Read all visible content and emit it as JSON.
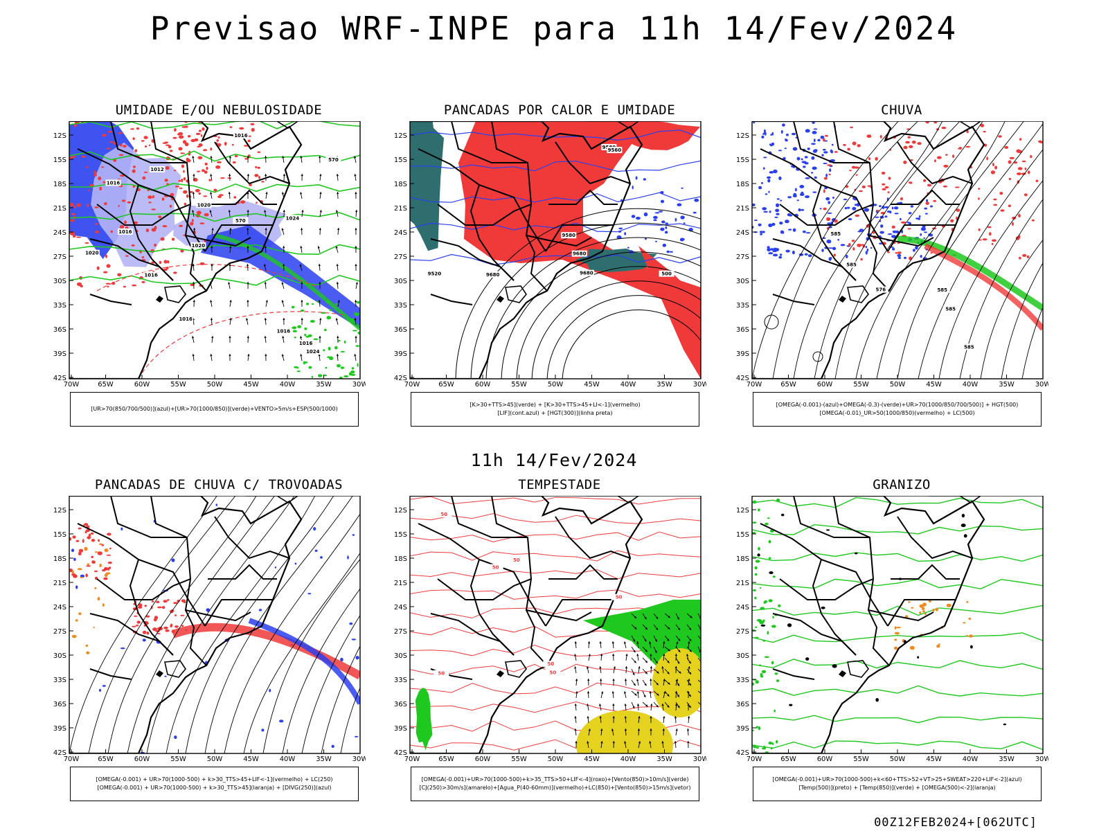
{
  "title": "Previsao WRF-INPE  para 11h 14/Fev/2024",
  "subtitle": "11h 14/Fev/2024",
  "run_stamp": "00Z12FEB2024+[062UTC]",
  "colors": {
    "red": "#f03a3a",
    "green": "#1ec81e",
    "blue": "#2a40f0",
    "teal": "#2f6e6e",
    "yellow": "#e4d21e",
    "orange": "#f08a1e",
    "lightblue": "#b4b4f5",
    "purple": "#7a6ee0"
  },
  "chart_data": [
    {
      "type": "heatmap",
      "title": "UMIDADE E/OU NEBULOSIDADE",
      "lat_ticks": [
        "12S",
        "15S",
        "18S",
        "21S",
        "24S",
        "27S",
        "30S",
        "33S",
        "36S",
        "39S",
        "42S"
      ],
      "lon_ticks": [
        "70W",
        "65W",
        "60W",
        "55W",
        "50W",
        "45W",
        "40W",
        "35W",
        "30W"
      ],
      "legend": [
        "[UR>70(850/700/500)](azul)+[UR>70(1000/850)](verde)+VENTO>5m/s+ESP(500/1000)"
      ],
      "contour_labels": [
        "1016",
        "1016",
        "1016",
        "1024",
        "1016",
        "1016",
        "1012",
        "1020",
        "1020",
        "1016",
        "1024",
        "1020",
        "1016",
        "570",
        "570"
      ],
      "fields": [
        "blue",
        "green",
        "lightblue",
        "red",
        "wind"
      ]
    },
    {
      "type": "heatmap",
      "title": "PANCADAS POR CALOR E UMIDADE",
      "lat_ticks": [
        "12S",
        "15S",
        "18S",
        "21S",
        "24S",
        "27S",
        "30S",
        "33S",
        "36S",
        "39S",
        "42S"
      ],
      "lon_ticks": [
        "70W",
        "65W",
        "60W",
        "55W",
        "50W",
        "45W",
        "40W",
        "35W",
        "30W"
      ],
      "legend": [
        "[K>30+TTS>45](verde) + [K>30+TTS>45+LI<-1](vermelho)",
        "[LIF](cont.azul) + [HGT(300)](linha preta)"
      ],
      "contour_labels": [
        "9680",
        "9680",
        "9580",
        "9580",
        "9560",
        "9680",
        "9520",
        "500"
      ],
      "fields": [
        "red",
        "teal",
        "blue"
      ]
    },
    {
      "type": "heatmap",
      "title": "CHUVA",
      "lat_ticks": [
        "12S",
        "15S",
        "18S",
        "21S",
        "24S",
        "27S",
        "30S",
        "33S",
        "36S",
        "39S",
        "42S"
      ],
      "lon_ticks": [
        "70W",
        "65W",
        "60W",
        "55W",
        "50W",
        "45W",
        "40W",
        "35W",
        "30W"
      ],
      "legend": [
        "[OMEGA(-0.001)-(azul)+OMEGA(-0.3)-(verde)+UR>70(1000/850/700/500)] + HGT(500)",
        "[OMEGA(-0.01)_UR>50(1000/850)(vermelho) + LC(500)"
      ],
      "contour_labels": [
        "585",
        "585",
        "585",
        "576",
        "585",
        "585"
      ],
      "fields": [
        "blue",
        "red",
        "green",
        "streamlines"
      ]
    },
    {
      "type": "heatmap",
      "title": "PANCADAS DE CHUVA C/ TROVOADAS",
      "lat_ticks": [
        "12S",
        "15S",
        "18S",
        "21S",
        "24S",
        "27S",
        "30S",
        "33S",
        "36S",
        "39S",
        "42S"
      ],
      "lon_ticks": [
        "70W",
        "65W",
        "60W",
        "55W",
        "50W",
        "45W",
        "40W",
        "35W",
        "30W"
      ],
      "legend": [
        "[OMEGA(-0.001) + UR>70(1000-500) + k>30_TTS>45+LIF<-1](vermelho) + LC(250)",
        "[OMEGA(-0.001) + UR>70(1000-500) + k>30_TTS>45](laranja) + [DIVG(250)](azul)"
      ],
      "contour_labels": [],
      "fields": [
        "red",
        "blue",
        "orange",
        "streamlines"
      ]
    },
    {
      "type": "heatmap",
      "title": "TEMPESTADE",
      "lat_ticks": [
        "12S",
        "15S",
        "18S",
        "21S",
        "24S",
        "27S",
        "30S",
        "33S",
        "36S",
        "39S",
        "42S"
      ],
      "lon_ticks": [
        "70W",
        "65W",
        "60W",
        "55W",
        "50W",
        "45W",
        "40W",
        "35W",
        "30W"
      ],
      "legend": [
        "[OMEGA(-0.001)+UR>70(1000-500)+k>35_TTS>50+LIF<-4](roxo)+[Vento(850)>10m/s](verde)",
        "[CJ(250)>30m/s](amarelo)+[Agua_P(40-60mm)](vermelho)+LC(850)+[Vento(850)>15m/s](vetor)"
      ],
      "contour_labels": [
        "50",
        "50",
        "50",
        "50",
        "50",
        "50",
        "50"
      ],
      "fields": [
        "red",
        "green",
        "yellow",
        "vectors"
      ]
    },
    {
      "type": "heatmap",
      "title": "GRANIZO",
      "lat_ticks": [
        "12S",
        "15S",
        "18S",
        "21S",
        "24S",
        "27S",
        "30S",
        "33S",
        "36S",
        "39S",
        "42S"
      ],
      "lon_ticks": [
        "70W",
        "65W",
        "60W",
        "55W",
        "50W",
        "45W",
        "40W",
        "35W",
        "30W"
      ],
      "legend": [
        "[OMEGA(-0.001)+UR>70(1000-500)+k<60+TTS>52+VT>25+SWEAT>220+LIF<-2](azul)",
        "[Temp(500)](preto) + [Temp(850)](verde) + [OMEGA(500)<-2](laranja)"
      ],
      "contour_labels": [],
      "fields": [
        "green",
        "orange"
      ]
    }
  ]
}
